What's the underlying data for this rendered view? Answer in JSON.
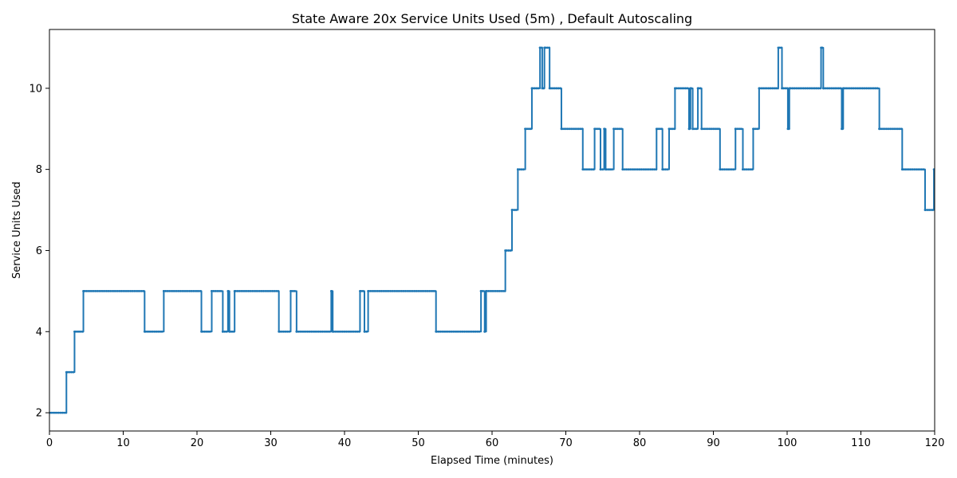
{
  "chart_data": {
    "type": "line",
    "title": "State Aware 20x Service Units Used (5m) , Default Autoscaling",
    "xlabel": "Elapsed Time (minutes)",
    "ylabel": "Service Units Used",
    "xlim": [
      0,
      120
    ],
    "ylim": [
      1.55,
      11.45
    ],
    "xticks": [
      0,
      10,
      20,
      30,
      40,
      50,
      60,
      70,
      80,
      90,
      100,
      110,
      120
    ],
    "yticks": [
      2,
      4,
      6,
      8,
      10
    ],
    "grid": false,
    "legend": "none",
    "series": [
      {
        "color": "#1f77b4",
        "marker": "dot",
        "steps": [
          [
            0,
            2
          ],
          [
            2.3,
            3
          ],
          [
            3.4,
            4
          ],
          [
            4.6,
            5
          ],
          [
            12.9,
            4
          ],
          [
            15.5,
            5
          ],
          [
            20.6,
            4
          ],
          [
            22.0,
            5
          ],
          [
            23.5,
            4
          ],
          [
            24.2,
            5
          ],
          [
            24.4,
            4
          ],
          [
            25.1,
            5
          ],
          [
            31.1,
            4
          ],
          [
            32.7,
            5
          ],
          [
            33.5,
            4
          ],
          [
            38.2,
            5
          ],
          [
            38.4,
            4
          ],
          [
            42.1,
            5
          ],
          [
            42.7,
            4
          ],
          [
            43.2,
            5
          ],
          [
            52.4,
            4
          ],
          [
            58.5,
            5
          ],
          [
            59.0,
            4
          ],
          [
            59.2,
            5
          ],
          [
            61.8,
            6
          ],
          [
            62.7,
            7
          ],
          [
            63.5,
            8
          ],
          [
            64.5,
            9
          ],
          [
            65.4,
            10
          ],
          [
            66.5,
            11
          ],
          [
            66.8,
            10
          ],
          [
            67.1,
            11
          ],
          [
            67.8,
            10
          ],
          [
            69.4,
            9
          ],
          [
            72.3,
            8
          ],
          [
            73.9,
            9
          ],
          [
            74.7,
            8
          ],
          [
            75.2,
            9
          ],
          [
            75.4,
            8
          ],
          [
            76.5,
            9
          ],
          [
            77.7,
            8
          ],
          [
            82.3,
            9
          ],
          [
            83.1,
            8
          ],
          [
            84.0,
            9
          ],
          [
            84.8,
            10
          ],
          [
            86.7,
            9
          ],
          [
            86.9,
            10
          ],
          [
            87.2,
            9
          ],
          [
            87.9,
            10
          ],
          [
            88.4,
            9
          ],
          [
            90.9,
            8
          ],
          [
            93.0,
            9
          ],
          [
            94.0,
            8
          ],
          [
            95.4,
            9
          ],
          [
            96.2,
            10
          ],
          [
            98.8,
            11
          ],
          [
            99.3,
            10
          ],
          [
            100.1,
            9
          ],
          [
            100.3,
            10
          ],
          [
            104.6,
            11
          ],
          [
            104.9,
            10
          ],
          [
            107.4,
            9
          ],
          [
            107.6,
            10
          ],
          [
            112.5,
            9
          ],
          [
            115.6,
            8
          ],
          [
            118.7,
            7
          ],
          [
            119.9,
            8
          ]
        ],
        "end_x": 120
      }
    ]
  }
}
